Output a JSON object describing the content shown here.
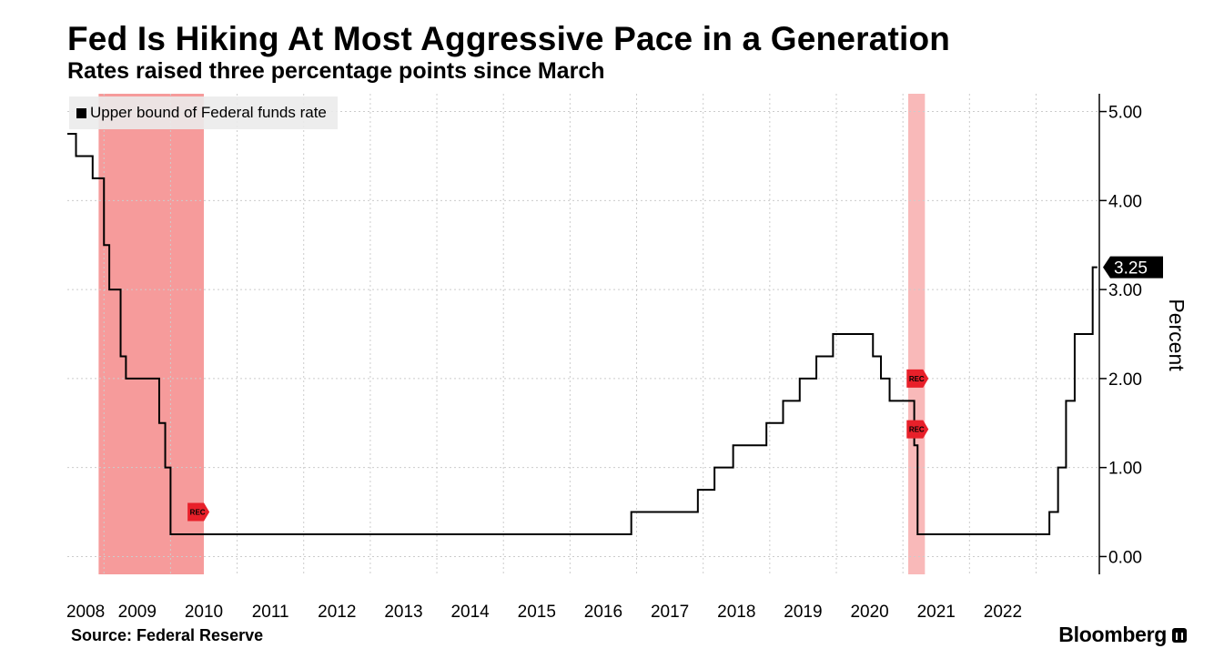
{
  "header": {
    "title": "Fed Is Hiking At Most Aggressive Pace in a Generation",
    "subtitle": "Rates raised three percentage points since March"
  },
  "footer": {
    "source": "Source: Federal Reserve",
    "brand": "Bloomberg"
  },
  "colors": {
    "line": "#000000",
    "recession_band": "#f58a8a",
    "rec_marker": "#e8202a",
    "grid": "#cccccc"
  },
  "chart_data": {
    "type": "line",
    "title": "Fed Is Hiking At Most Aggressive Pace in a Generation",
    "subtitle": "Rates raised three percentage points since March",
    "ylabel": "Percent",
    "ylim": [
      -0.2,
      5.2
    ],
    "xlim": [
      2007.45,
      2022.95
    ],
    "y_ticks": [
      0,
      1,
      2,
      3,
      4,
      5
    ],
    "y_tick_labels": [
      "0.00",
      "1.00",
      "2.00",
      "3.00",
      "4.00",
      "5.00"
    ],
    "x_ticks": [
      "2008",
      "2009",
      "2010",
      "2011",
      "2012",
      "2013",
      "2014",
      "2015",
      "2016",
      "2017",
      "2018",
      "2019",
      "2020",
      "2021",
      "2022"
    ],
    "grid": true,
    "legend": {
      "position": "top-left",
      "entries": [
        "Upper bound of Federal funds rate"
      ]
    },
    "last_value_label": "3.25",
    "recession_marker_label": "REC",
    "recessions": [
      {
        "start": 2007.92,
        "end": 2009.5
      },
      {
        "start": 2020.08,
        "end": 2020.33
      }
    ],
    "series": [
      {
        "name": "Upper bound of Federal funds rate",
        "step": true,
        "x": [
          2007.45,
          2007.5,
          2007.58,
          2007.75,
          2007.83,
          2007.92,
          2008.0,
          2008.08,
          2008.25,
          2008.33,
          2008.75,
          2008.83,
          2008.92,
          2009.0,
          2015.92,
          2016.92,
          2017.17,
          2017.45,
          2017.95,
          2018.2,
          2018.45,
          2018.7,
          2018.95,
          2019.55,
          2019.67,
          2019.8,
          2020.17,
          2020.22,
          2021.5,
          2022.2,
          2022.33,
          2022.45,
          2022.58,
          2022.7,
          2022.85,
          2022.92
        ],
        "values": [
          4.75,
          4.75,
          4.5,
          4.5,
          4.25,
          4.25,
          3.5,
          3.0,
          2.25,
          2.0,
          2.0,
          1.5,
          1.0,
          0.25,
          0.5,
          0.75,
          1.0,
          1.25,
          1.5,
          1.75,
          2.0,
          2.25,
          2.5,
          2.25,
          2.0,
          1.75,
          1.25,
          0.25,
          0.25,
          0.5,
          1.0,
          1.75,
          2.5,
          2.5,
          3.25,
          3.25
        ]
      }
    ]
  }
}
